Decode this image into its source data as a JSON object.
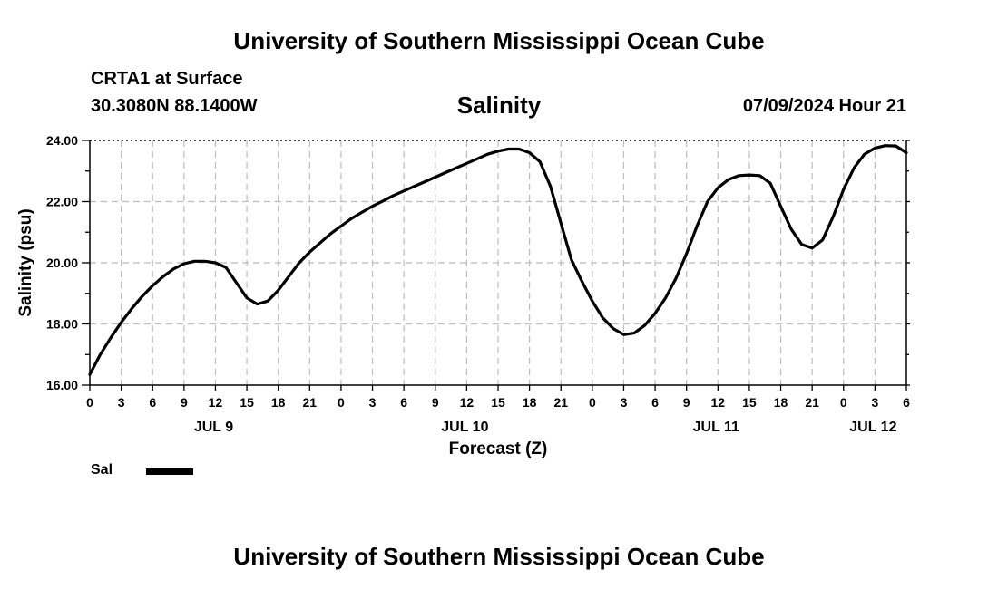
{
  "page": {
    "title_top": "University of Southern Mississippi Ocean Cube",
    "title_bottom": "University of Southern Mississippi Ocean Cube",
    "station": "CRTA1 at Surface",
    "coords": "30.3080N  88.1400W",
    "datetime": "07/09/2024 Hour 21"
  },
  "chart_data": {
    "type": "line",
    "title": "Salinity",
    "xlabel": "Forecast (Z)",
    "ylabel": "Salinity (psu)",
    "ylim": [
      16,
      24
    ],
    "xlim_hours": [
      0,
      78
    ],
    "y_ticks": [
      "16.00",
      "18.00",
      "20.00",
      "22.00",
      "24.00"
    ],
    "x_tick_labels": [
      "0",
      "3",
      "6",
      "9",
      "12",
      "15",
      "18",
      "21",
      "0",
      "3",
      "6",
      "9",
      "12",
      "15",
      "18",
      "21",
      "0",
      "3",
      "6",
      "9",
      "12",
      "15",
      "18",
      "21",
      "0",
      "3",
      "6"
    ],
    "x_tick_hours": [
      0,
      3,
      6,
      9,
      12,
      15,
      18,
      21,
      24,
      27,
      30,
      33,
      36,
      39,
      42,
      45,
      48,
      51,
      54,
      57,
      60,
      63,
      66,
      69,
      72,
      75,
      78
    ],
    "day_labels": [
      {
        "label": "JUL 9",
        "hour": 12
      },
      {
        "label": "JUL 10",
        "hour": 36
      },
      {
        "label": "JUL 11",
        "hour": 60
      },
      {
        "label": "JUL 12",
        "hour": 75
      }
    ],
    "grid": true,
    "legend": [
      {
        "name": "Sal",
        "color": "#000000"
      }
    ],
    "series": [
      {
        "name": "Sal",
        "x": [
          0,
          1,
          2,
          3,
          4,
          5,
          6,
          7,
          8,
          9,
          10,
          11,
          12,
          13,
          14,
          15,
          16,
          17,
          18,
          19,
          20,
          21,
          22,
          23,
          24,
          25,
          26,
          27,
          28,
          29,
          30,
          31,
          32,
          33,
          34,
          35,
          36,
          37,
          38,
          39,
          40,
          41,
          42,
          43,
          44,
          45,
          46,
          47,
          48,
          49,
          50,
          51,
          52,
          53,
          54,
          55,
          56,
          57,
          58,
          59,
          60,
          61,
          62,
          63,
          64,
          65,
          66,
          67,
          68,
          69,
          70,
          71,
          72,
          73,
          74,
          75,
          76,
          77,
          78
        ],
        "y": [
          16.35,
          17.0,
          17.55,
          18.05,
          18.5,
          18.9,
          19.25,
          19.55,
          19.8,
          19.97,
          20.05,
          20.05,
          20.0,
          19.85,
          19.35,
          18.85,
          18.65,
          18.75,
          19.1,
          19.55,
          20.0,
          20.35,
          20.65,
          20.95,
          21.2,
          21.45,
          21.65,
          21.85,
          22.02,
          22.2,
          22.35,
          22.5,
          22.65,
          22.8,
          22.95,
          23.1,
          23.25,
          23.4,
          23.55,
          23.65,
          23.72,
          23.72,
          23.6,
          23.3,
          22.5,
          21.3,
          20.1,
          19.4,
          18.75,
          18.2,
          17.85,
          17.65,
          17.7,
          17.95,
          18.35,
          18.85,
          19.5,
          20.3,
          21.2,
          22.0,
          22.45,
          22.72,
          22.85,
          22.87,
          22.85,
          22.6,
          21.85,
          21.1,
          20.6,
          20.48,
          20.75,
          21.5,
          22.4,
          23.1,
          23.55,
          23.75,
          23.83,
          23.82,
          23.6
        ]
      }
    ]
  }
}
